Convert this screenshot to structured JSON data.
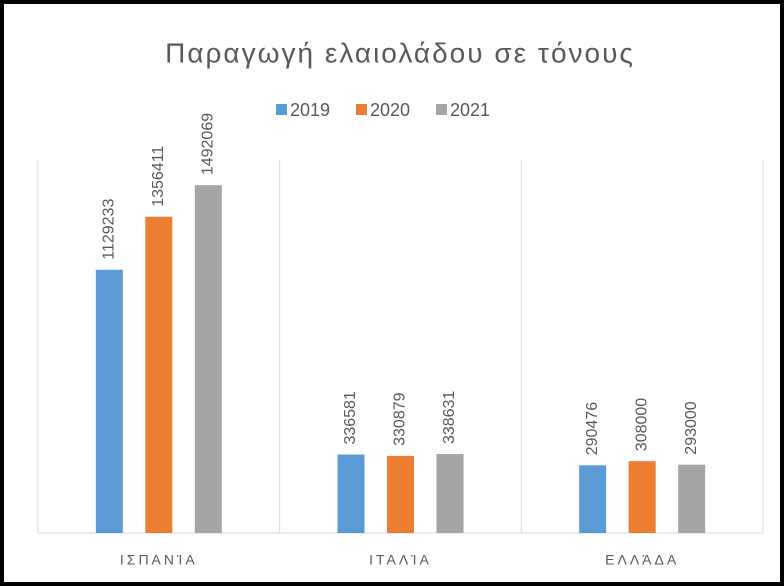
{
  "chart_data": {
    "type": "bar",
    "title": "Παραγωγή ελαιολάδου σε τόνους",
    "categories": [
      "ΙΣΠΑΝΊΑ",
      "ΙΤΑΛΊΑ",
      "ΕΛΛΆΔΑ"
    ],
    "series": [
      {
        "name": "2019",
        "color": "#5b9bd5",
        "values": [
          1129233,
          336581,
          290476
        ]
      },
      {
        "name": "2020",
        "color": "#ed7d31",
        "values": [
          1356411,
          330879,
          308000
        ]
      },
      {
        "name": "2021",
        "color": "#a5a5a5",
        "values": [
          1492069,
          338631,
          293000
        ]
      }
    ],
    "ylim": [
      0,
      1600000
    ],
    "legend": "top"
  }
}
